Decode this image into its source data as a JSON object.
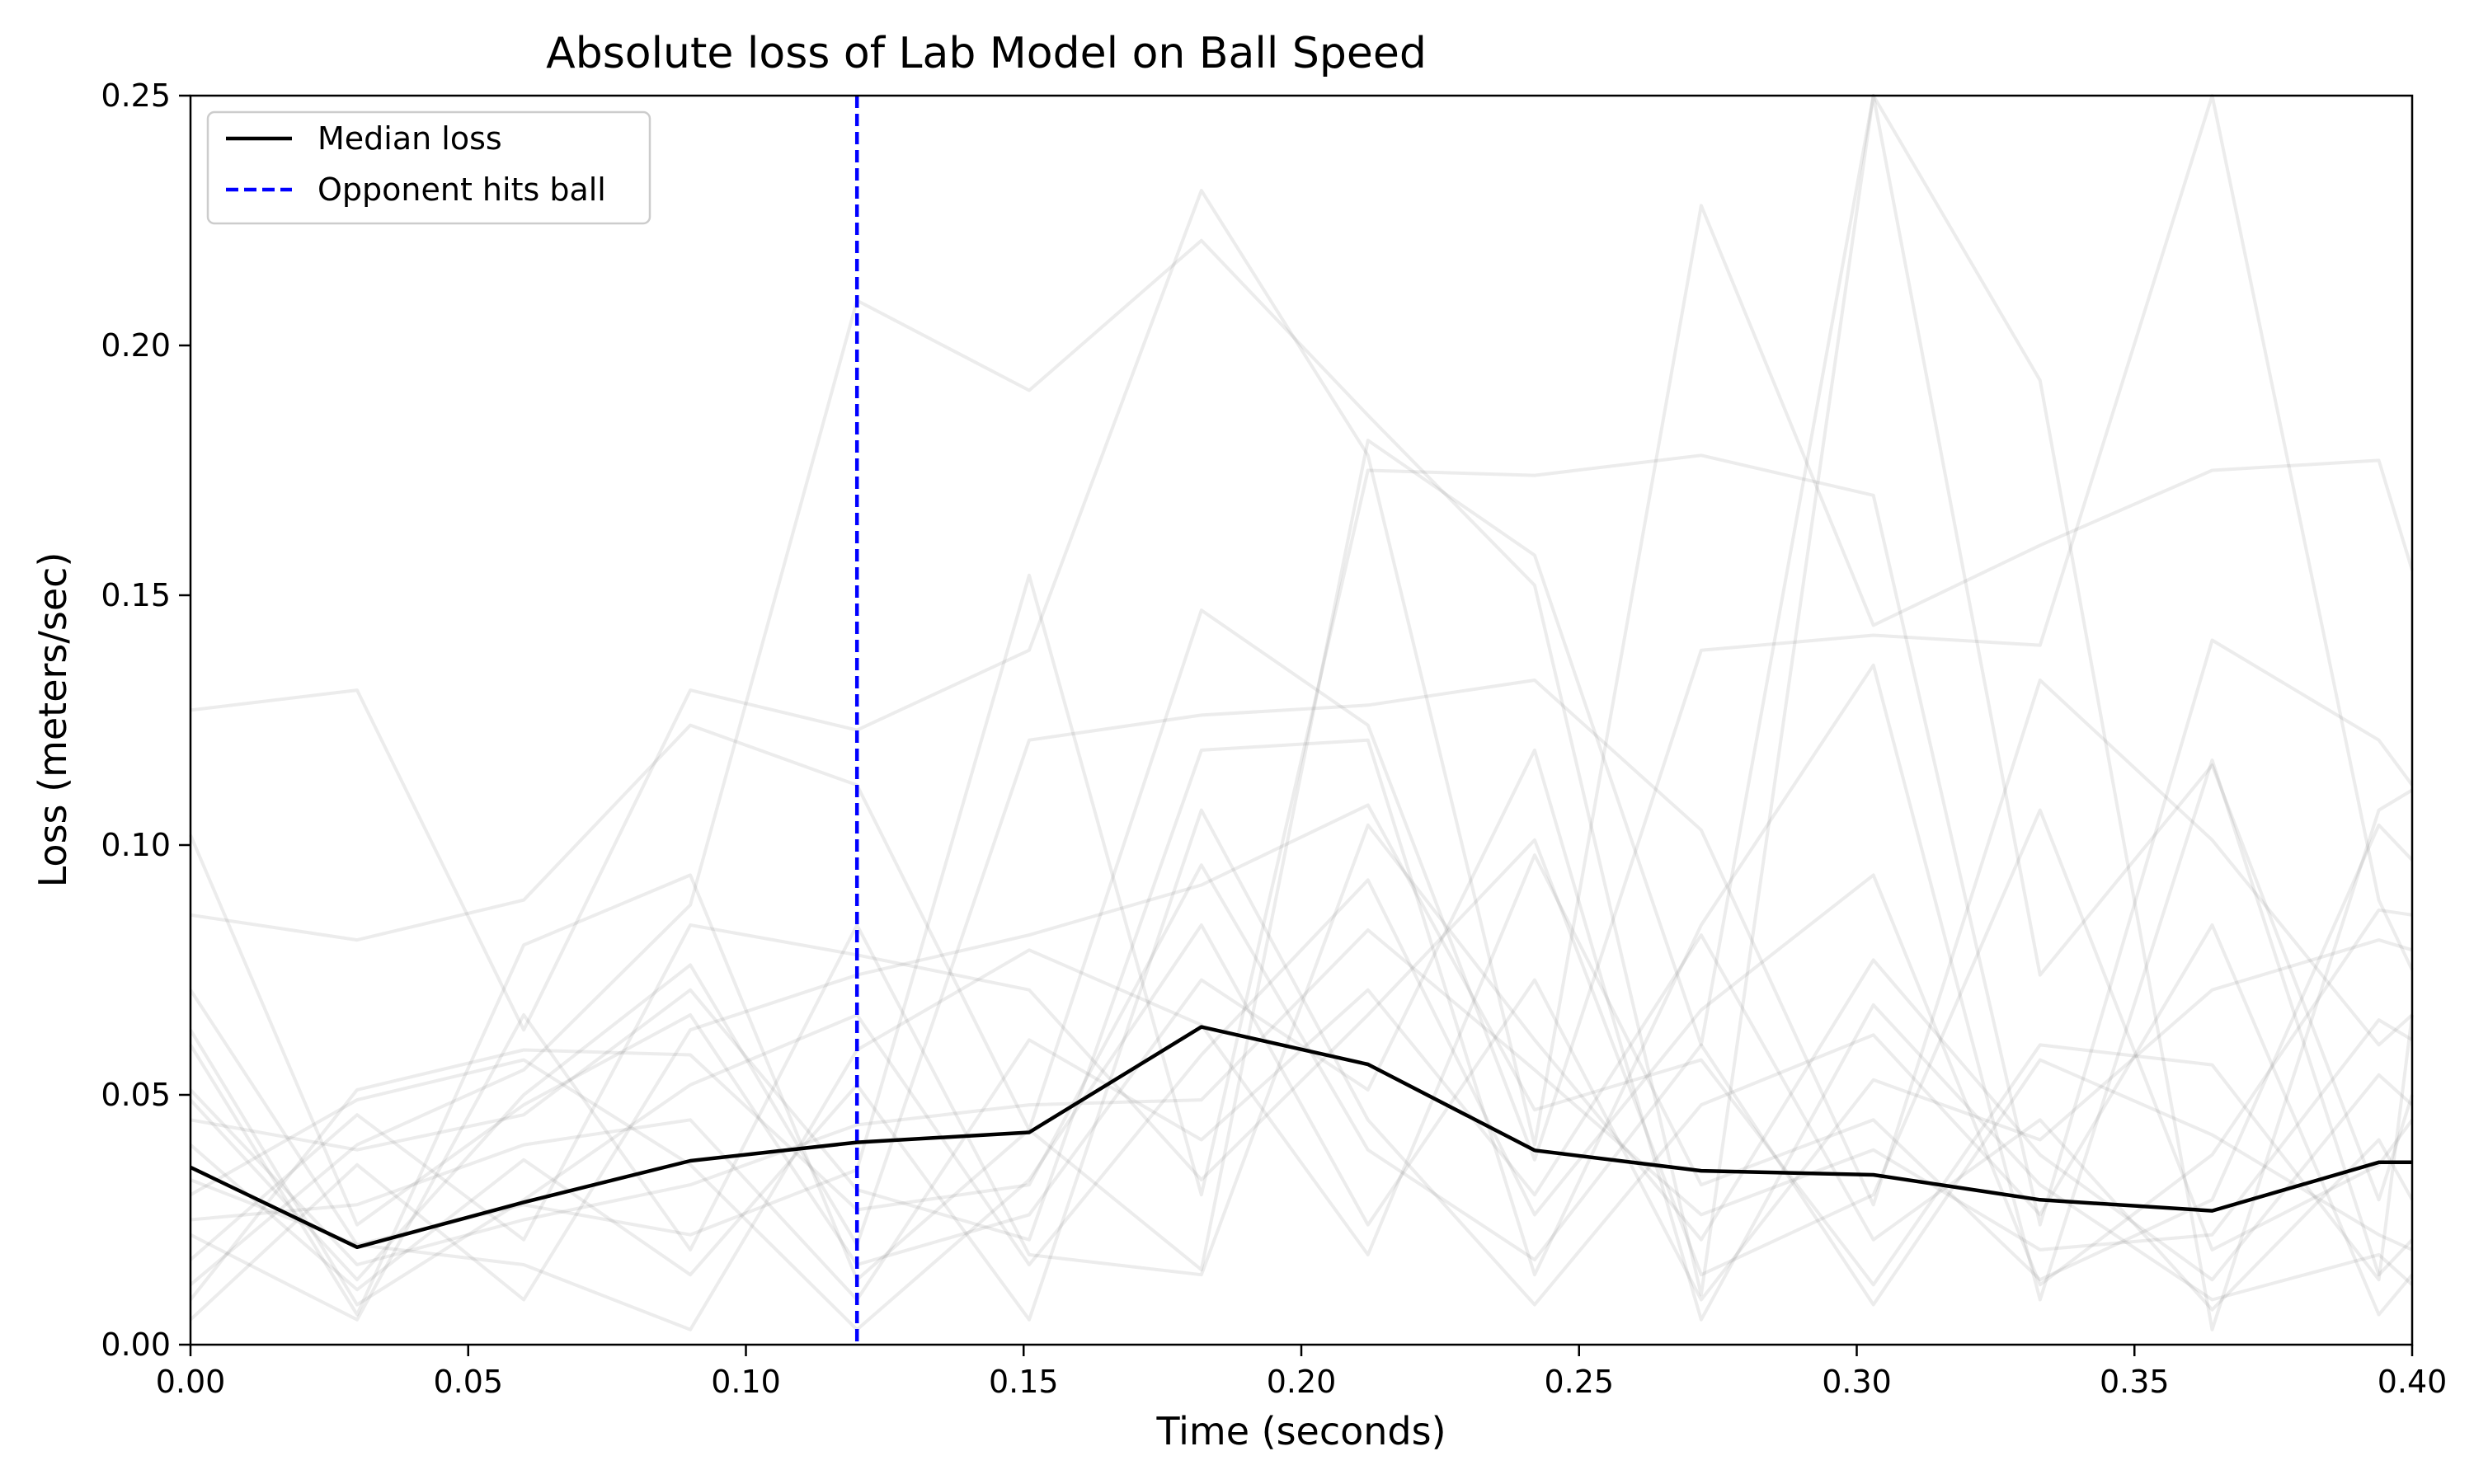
{
  "chart_data": {
    "type": "line",
    "title": "Absolute loss of Lab Model on Ball Speed",
    "xlabel": "Time (seconds)",
    "ylabel": "Loss (meters/sec)",
    "xlim": [
      0.0,
      0.4
    ],
    "ylim": [
      0.0,
      0.25
    ],
    "x_ticks": [
      "0.00",
      "0.05",
      "0.10",
      "0.15",
      "0.20",
      "0.25",
      "0.30",
      "0.35",
      "0.40"
    ],
    "y_ticks": [
      "0.00",
      "0.05",
      "0.10",
      "0.15",
      "0.20",
      "0.25"
    ],
    "grid": false,
    "legend_position": "top-left",
    "legend": [
      {
        "label": "Median loss",
        "style": "solid",
        "color": "#000000"
      },
      {
        "label": "Opponent hits ball",
        "style": "dashed",
        "color": "#0000ff"
      }
    ],
    "x": [
      0.0,
      0.03,
      0.06,
      0.09,
      0.12,
      0.151,
      0.182,
      0.212,
      0.242,
      0.272,
      0.303,
      0.333,
      0.364,
      0.394,
      0.4
    ],
    "series": [
      {
        "name": "Median loss",
        "color": "#000000",
        "values": [
          0.0355,
          0.0195,
          0.0285,
          0.0368,
          0.0405,
          0.0425,
          0.0636,
          0.0561,
          0.0389,
          0.0348,
          0.034,
          0.029,
          0.0268,
          0.0365,
          0.0365
        ]
      }
    ],
    "vline": {
      "label": "Opponent hits ball",
      "x": 0.12,
      "color": "#0000ff"
    },
    "background_traces": {
      "color": "#808080",
      "opacity": 0.15,
      "values": [
        [
          0.127,
          0.131,
          0.063,
          0.131,
          0.123,
          0.139,
          0.231,
          0.178,
          0.04,
          0.228,
          0.144,
          0.16,
          0.175,
          0.177,
          0.155
        ],
        [
          0.012,
          0.04,
          0.055,
          0.088,
          0.209,
          0.191,
          0.221,
          0.186,
          0.152,
          0.01,
          0.257,
          0.193,
          0.003,
          0.107,
          0.111
        ],
        [
          0.033,
          0.02,
          0.028,
          0.022,
          0.035,
          0.154,
          0.03,
          0.175,
          0.174,
          0.178,
          0.17,
          0.024,
          0.141,
          0.121,
          0.112
        ],
        [
          0.06,
          0.006,
          0.08,
          0.094,
          0.013,
          0.043,
          0.015,
          0.181,
          0.158,
          0.06,
          0.255,
          0.074,
          0.116,
          0.029,
          0.05
        ],
        [
          0.086,
          0.081,
          0.089,
          0.124,
          0.112,
          0.043,
          0.147,
          0.124,
          0.037,
          0.139,
          0.142,
          0.14,
          0.252,
          0.089,
          0.075
        ],
        [
          0.049,
          0.013,
          0.05,
          0.076,
          0.02,
          0.121,
          0.126,
          0.128,
          0.133,
          0.103,
          0.028,
          0.133,
          0.101,
          0.06,
          0.066
        ],
        [
          0.045,
          0.039,
          0.046,
          0.071,
          0.031,
          0.021,
          0.119,
          0.121,
          0.014,
          0.084,
          0.136,
          0.009,
          0.117,
          0.014,
          0.021
        ],
        [
          0.022,
          0.005,
          0.066,
          0.019,
          0.084,
          0.018,
          0.014,
          0.104,
          0.061,
          0.021,
          0.077,
          0.038,
          0.013,
          0.054,
          0.048
        ],
        [
          0.005,
          0.036,
          0.009,
          0.063,
          0.074,
          0.082,
          0.092,
          0.108,
          0.047,
          0.057,
          0.012,
          0.06,
          0.056,
          0.013,
          0.066
        ],
        [
          0.03,
          0.049,
          0.057,
          0.036,
          0.003,
          0.033,
          0.084,
          0.024,
          0.073,
          0.009,
          0.053,
          0.041,
          0.071,
          0.081,
          0.079
        ],
        [
          0.063,
          0.008,
          0.029,
          0.052,
          0.066,
          0.016,
          0.058,
          0.093,
          0.026,
          0.067,
          0.094,
          0.012,
          0.038,
          0.087,
          0.086
        ],
        [
          0.017,
          0.046,
          0.021,
          0.084,
          0.078,
          0.071,
          0.033,
          0.066,
          0.101,
          0.014,
          0.03,
          0.107,
          0.019,
          0.036,
          0.045
        ],
        [
          0.04,
          0.011,
          0.037,
          0.014,
          0.052,
          0.005,
          0.107,
          0.045,
          0.008,
          0.048,
          0.062,
          0.026,
          0.084,
          0.006,
          0.014
        ],
        [
          0.025,
          0.028,
          0.04,
          0.045,
          0.009,
          0.061,
          0.041,
          0.071,
          0.03,
          0.082,
          0.021,
          0.045,
          0.007,
          0.041,
          0.029
        ],
        [
          0.071,
          0.02,
          0.016,
          0.003,
          0.059,
          0.079,
          0.064,
          0.018,
          0.098,
          0.032,
          0.045,
          0.013,
          0.029,
          0.104,
          0.097
        ],
        [
          0.009,
          0.051,
          0.059,
          0.058,
          0.027,
          0.032,
          0.096,
          0.039,
          0.017,
          0.06,
          0.008,
          0.057,
          0.042,
          0.022,
          0.019
        ],
        [
          0.051,
          0.016,
          0.025,
          0.032,
          0.044,
          0.048,
          0.049,
          0.083,
          0.055,
          0.026,
          0.039,
          0.019,
          0.022,
          0.065,
          0.061
        ],
        [
          0.102,
          0.024,
          0.048,
          0.066,
          0.016,
          0.026,
          0.073,
          0.051,
          0.119,
          0.005,
          0.068,
          0.032,
          0.009,
          0.018,
          0.012
        ]
      ]
    }
  }
}
